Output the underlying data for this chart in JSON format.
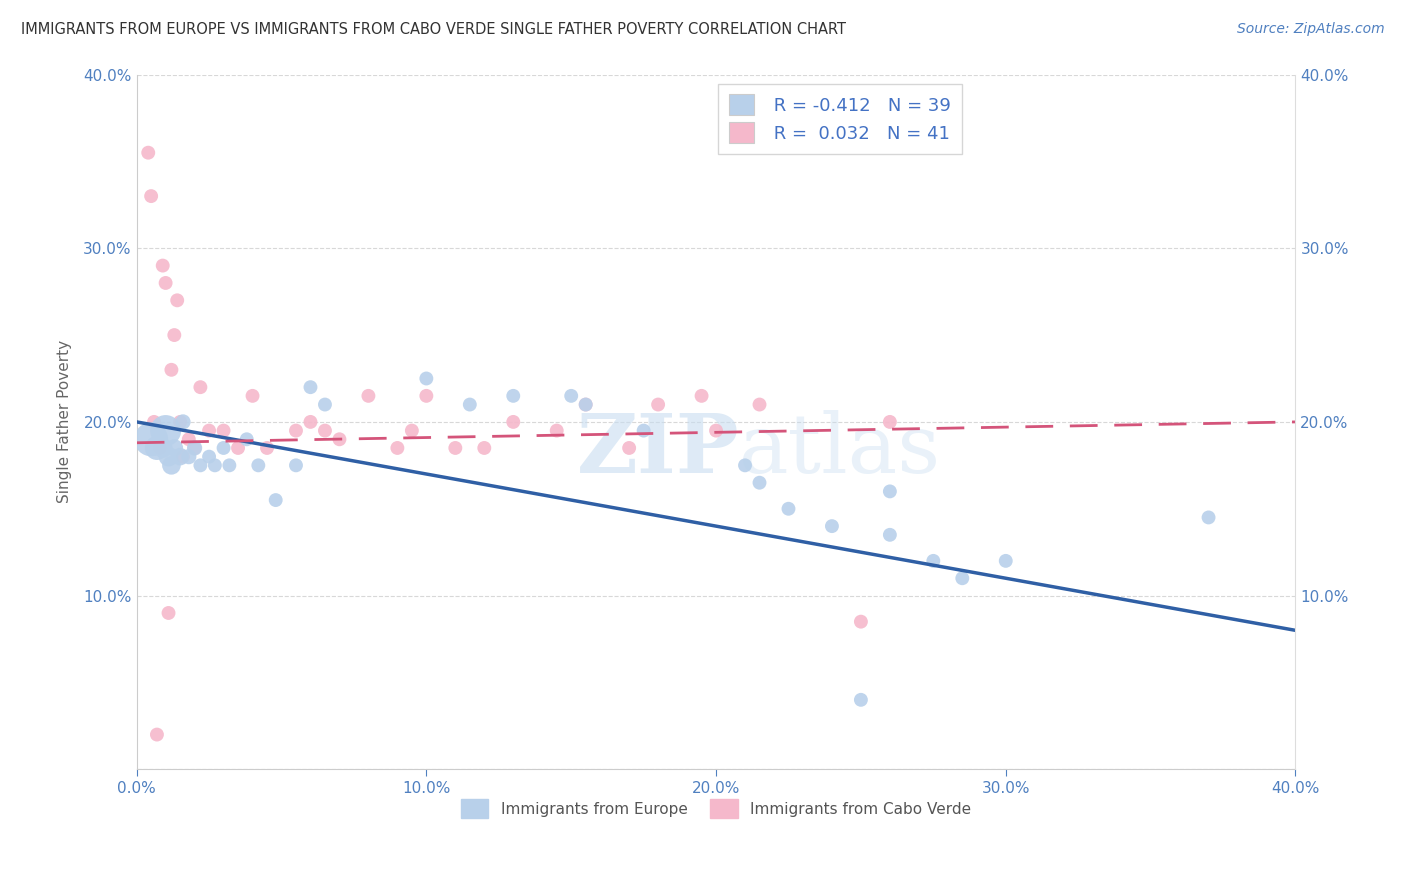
{
  "title": "IMMIGRANTS FROM EUROPE VS IMMIGRANTS FROM CABO VERDE SINGLE FATHER POVERTY CORRELATION CHART",
  "source": "Source: ZipAtlas.com",
  "ylabel": "Single Father Poverty",
  "xlabel_europe": "Immigrants from Europe",
  "xlabel_caboverde": "Immigrants from Cabo Verde",
  "r_europe": -0.412,
  "n_europe": 39,
  "r_caboverde": 0.032,
  "n_caboverde": 41,
  "xlim": [
    0.0,
    0.4
  ],
  "ylim": [
    0.0,
    0.4
  ],
  "xticks": [
    0.0,
    0.1,
    0.2,
    0.3,
    0.4
  ],
  "yticks": [
    0.0,
    0.1,
    0.2,
    0.3,
    0.4
  ],
  "xtick_labels": [
    "0.0%",
    "10.0%",
    "20.0%",
    "30.0%",
    "40.0%"
  ],
  "ytick_labels": [
    "",
    "10.0%",
    "20.0%",
    "30.0%",
    "40.0%"
  ],
  "color_europe": "#b8d0ea",
  "color_caboverde": "#f5b8cb",
  "line_color_europe": "#2f5fa5",
  "line_color_caboverde": "#d4547a",
  "watermark": "ZIPatlas",
  "europe_x": [
    0.005,
    0.007,
    0.009,
    0.01,
    0.011,
    0.012,
    0.013,
    0.015,
    0.016,
    0.018,
    0.02,
    0.022,
    0.025,
    0.027,
    0.03,
    0.032,
    0.038,
    0.042,
    0.048,
    0.055,
    0.06,
    0.065,
    0.1,
    0.115,
    0.13,
    0.15,
    0.155,
    0.175,
    0.21,
    0.215,
    0.225,
    0.24,
    0.26,
    0.275,
    0.285,
    0.3,
    0.26,
    0.37,
    0.25
  ],
  "europe_y": [
    0.19,
    0.185,
    0.185,
    0.195,
    0.18,
    0.175,
    0.185,
    0.18,
    0.2,
    0.18,
    0.185,
    0.175,
    0.18,
    0.175,
    0.185,
    0.175,
    0.19,
    0.175,
    0.155,
    0.175,
    0.22,
    0.21,
    0.225,
    0.21,
    0.215,
    0.215,
    0.21,
    0.195,
    0.175,
    0.165,
    0.15,
    0.14,
    0.135,
    0.12,
    0.11,
    0.12,
    0.16,
    0.145,
    0.04
  ],
  "europe_sizes": [
    600,
    300,
    200,
    500,
    200,
    180,
    160,
    160,
    120,
    120,
    120,
    100,
    100,
    100,
    100,
    100,
    100,
    100,
    100,
    100,
    100,
    100,
    100,
    100,
    100,
    100,
    100,
    100,
    100,
    100,
    100,
    100,
    100,
    100,
    100,
    100,
    100,
    100,
    100
  ],
  "caboverde_x": [
    0.004,
    0.005,
    0.006,
    0.007,
    0.008,
    0.009,
    0.01,
    0.011,
    0.012,
    0.013,
    0.014,
    0.015,
    0.016,
    0.018,
    0.02,
    0.022,
    0.025,
    0.03,
    0.035,
    0.04,
    0.045,
    0.055,
    0.06,
    0.065,
    0.07,
    0.08,
    0.09,
    0.095,
    0.1,
    0.11,
    0.12,
    0.13,
    0.145,
    0.155,
    0.17,
    0.18,
    0.195,
    0.2,
    0.215,
    0.25,
    0.26
  ],
  "caboverde_y": [
    0.355,
    0.33,
    0.2,
    0.02,
    0.185,
    0.29,
    0.28,
    0.09,
    0.23,
    0.25,
    0.27,
    0.2,
    0.18,
    0.19,
    0.185,
    0.22,
    0.195,
    0.195,
    0.185,
    0.215,
    0.185,
    0.195,
    0.2,
    0.195,
    0.19,
    0.215,
    0.185,
    0.195,
    0.215,
    0.185,
    0.185,
    0.2,
    0.195,
    0.21,
    0.185,
    0.21,
    0.215,
    0.195,
    0.21,
    0.085,
    0.2
  ],
  "caboverde_sizes": [
    100,
    100,
    100,
    100,
    100,
    100,
    100,
    100,
    100,
    100,
    100,
    100,
    100,
    100,
    100,
    100,
    100,
    100,
    100,
    100,
    100,
    100,
    100,
    100,
    100,
    100,
    100,
    100,
    100,
    100,
    100,
    100,
    100,
    100,
    100,
    100,
    100,
    100,
    100,
    100,
    100
  ],
  "europe_line_x0": 0.0,
  "europe_line_y0": 0.2,
  "europe_line_x1": 0.4,
  "europe_line_y1": 0.08,
  "cv_line_x0": 0.0,
  "cv_line_y0": 0.188,
  "cv_line_x1": 0.4,
  "cv_line_y1": 0.2
}
